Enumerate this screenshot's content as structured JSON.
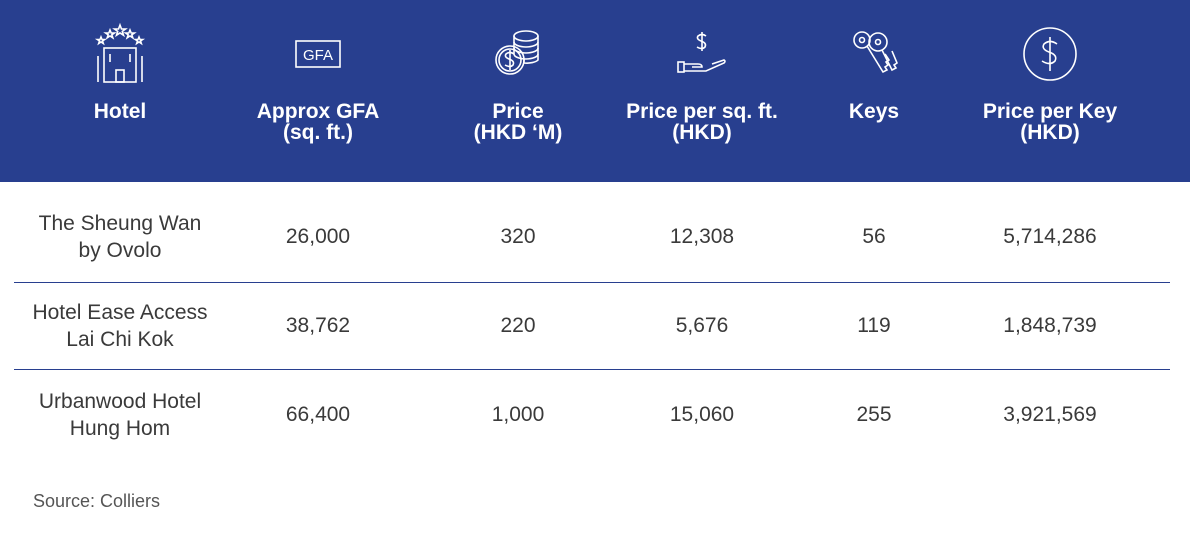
{
  "header": {
    "columns": [
      {
        "label": "Hotel",
        "icon": "hotel-stars-icon"
      },
      {
        "label": "Approx GFA\n(sq. ft.)",
        "icon": "gfa-icon",
        "icon_text": "GFA"
      },
      {
        "label": "Price\n(HKD ‘M)",
        "icon": "coins-dollar-icon"
      },
      {
        "label": "Price per sq. ft.\n(HKD)",
        "icon": "hand-dollar-icon"
      },
      {
        "label": "Keys",
        "icon": "keys-icon"
      },
      {
        "label": "Price per Key\n(HKD)",
        "icon": "dollar-circle-icon"
      }
    ]
  },
  "rows": [
    {
      "hotel": "The Sheung Wan\nby Ovolo",
      "gfa": "26,000",
      "price": "320",
      "price_sqft": "12,308",
      "keys": "56",
      "price_key": "5,714,286"
    },
    {
      "hotel": "Hotel Ease Access\nLai Chi Kok",
      "gfa": "38,762",
      "price": "220",
      "price_sqft": "5,676",
      "keys": "119",
      "price_key": "1,848,739"
    },
    {
      "hotel": "Urbanwood Hotel\nHung Hom",
      "gfa": "66,400",
      "price": "1,000",
      "price_sqft": "15,060",
      "keys": "255",
      "price_key": "3,921,569"
    }
  ],
  "source": "Source: Colliers",
  "colors": {
    "header_bg": "#283f8f",
    "header_text": "#ffffff",
    "divider": "#283f8f"
  }
}
